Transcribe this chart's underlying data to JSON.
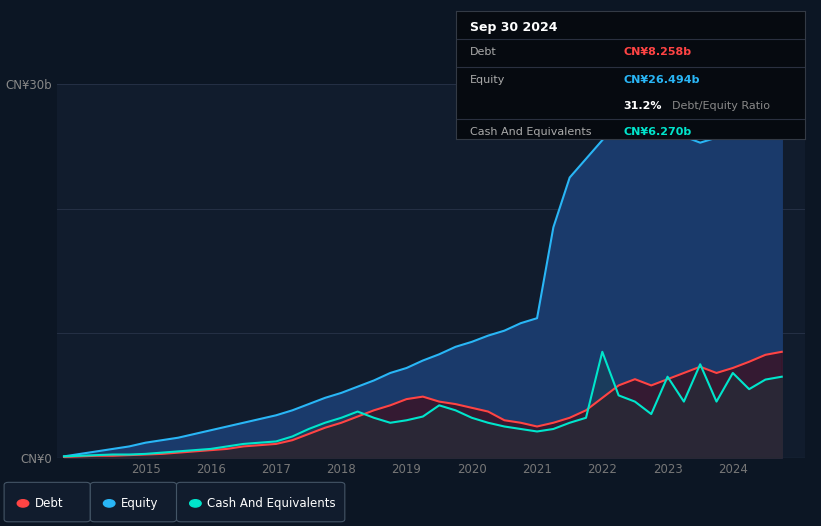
{
  "background_color": "#0c1624",
  "plot_bg_color": "#0c1624",
  "chart_area_color": "#0d1b2a",
  "title_box": {
    "date": "Sep 30 2024",
    "debt_label": "Debt",
    "debt_value": "CN¥8.258b",
    "debt_color": "#ff4444",
    "equity_label": "Equity",
    "equity_value": "CN¥26.494b",
    "equity_color": "#29b6f6",
    "ratio_bold": "31.2%",
    "ratio_text": "Debt/Equity Ratio",
    "ratio_bold_color": "#ffffff",
    "ratio_text_color": "#888888",
    "cash_label": "Cash And Equivalents",
    "cash_value": "CN¥6.270b",
    "cash_color": "#00e5cc"
  },
  "ylim": [
    0,
    30
  ],
  "ylabel_top": "CN¥30b",
  "ylabel_bottom": "CN¥0",
  "equity_color": "#29b6f6",
  "equity_fill_color": "#1a3a6b",
  "debt_color": "#ff4444",
  "debt_fill_color": "#4a1020",
  "cash_color": "#00e5cc",
  "legend_labels": [
    "Debt",
    "Equity",
    "Cash And Equivalents"
  ],
  "legend_colors": [
    "#ff4444",
    "#29b6f6",
    "#00e5cc"
  ],
  "equity_data": {
    "x": [
      2013.75,
      2014.0,
      2014.25,
      2014.5,
      2014.75,
      2015.0,
      2015.25,
      2015.5,
      2015.75,
      2016.0,
      2016.25,
      2016.5,
      2016.75,
      2017.0,
      2017.25,
      2017.5,
      2017.75,
      2018.0,
      2018.25,
      2018.5,
      2018.75,
      2019.0,
      2019.25,
      2019.5,
      2019.75,
      2020.0,
      2020.25,
      2020.5,
      2020.75,
      2021.0,
      2021.25,
      2021.5,
      2021.75,
      2022.0,
      2022.25,
      2022.5,
      2022.75,
      2023.0,
      2023.25,
      2023.5,
      2023.75,
      2024.0,
      2024.25,
      2024.5,
      2024.75
    ],
    "y": [
      0.1,
      0.3,
      0.5,
      0.7,
      0.9,
      1.2,
      1.4,
      1.6,
      1.9,
      2.2,
      2.5,
      2.8,
      3.1,
      3.4,
      3.8,
      4.3,
      4.8,
      5.2,
      5.7,
      6.2,
      6.8,
      7.2,
      7.8,
      8.3,
      8.9,
      9.3,
      9.8,
      10.2,
      10.8,
      11.2,
      18.5,
      22.5,
      24.0,
      25.5,
      27.0,
      28.8,
      27.5,
      26.5,
      25.8,
      25.3,
      25.7,
      26.0,
      26.3,
      26.494,
      26.8
    ]
  },
  "debt_data": {
    "x": [
      2013.75,
      2014.0,
      2014.25,
      2014.5,
      2014.75,
      2015.0,
      2015.25,
      2015.5,
      2015.75,
      2016.0,
      2016.25,
      2016.5,
      2016.75,
      2017.0,
      2017.25,
      2017.5,
      2017.75,
      2018.0,
      2018.25,
      2018.5,
      2018.75,
      2019.0,
      2019.25,
      2019.5,
      2019.75,
      2020.0,
      2020.25,
      2020.5,
      2020.75,
      2021.0,
      2021.25,
      2021.5,
      2021.75,
      2022.0,
      2022.25,
      2022.5,
      2022.75,
      2023.0,
      2023.25,
      2023.5,
      2023.75,
      2024.0,
      2024.25,
      2024.5,
      2024.75
    ],
    "y": [
      0.05,
      0.1,
      0.15,
      0.15,
      0.2,
      0.25,
      0.3,
      0.4,
      0.5,
      0.6,
      0.7,
      0.9,
      1.0,
      1.1,
      1.4,
      1.9,
      2.4,
      2.8,
      3.3,
      3.8,
      4.2,
      4.7,
      4.9,
      4.5,
      4.3,
      4.0,
      3.7,
      3.0,
      2.8,
      2.5,
      2.8,
      3.2,
      3.8,
      4.8,
      5.8,
      6.3,
      5.8,
      6.3,
      6.8,
      7.3,
      6.8,
      7.2,
      7.7,
      8.258,
      8.5
    ]
  },
  "cash_data": {
    "x": [
      2013.75,
      2014.0,
      2014.25,
      2014.5,
      2014.75,
      2015.0,
      2015.25,
      2015.5,
      2015.75,
      2016.0,
      2016.25,
      2016.5,
      2016.75,
      2017.0,
      2017.25,
      2017.5,
      2017.75,
      2018.0,
      2018.25,
      2018.5,
      2018.75,
      2019.0,
      2019.25,
      2019.5,
      2019.75,
      2020.0,
      2020.25,
      2020.5,
      2020.75,
      2021.0,
      2021.25,
      2021.5,
      2021.75,
      2022.0,
      2022.25,
      2022.5,
      2022.75,
      2023.0,
      2023.25,
      2023.5,
      2023.75,
      2024.0,
      2024.25,
      2024.5,
      2024.75
    ],
    "y": [
      0.1,
      0.15,
      0.2,
      0.25,
      0.25,
      0.3,
      0.4,
      0.5,
      0.6,
      0.7,
      0.9,
      1.1,
      1.2,
      1.3,
      1.7,
      2.3,
      2.8,
      3.2,
      3.7,
      3.2,
      2.8,
      3.0,
      3.3,
      4.2,
      3.8,
      3.2,
      2.8,
      2.5,
      2.3,
      2.1,
      2.3,
      2.8,
      3.2,
      8.5,
      5.0,
      4.5,
      3.5,
      6.5,
      4.5,
      7.5,
      4.5,
      6.8,
      5.5,
      6.27,
      6.5
    ]
  }
}
